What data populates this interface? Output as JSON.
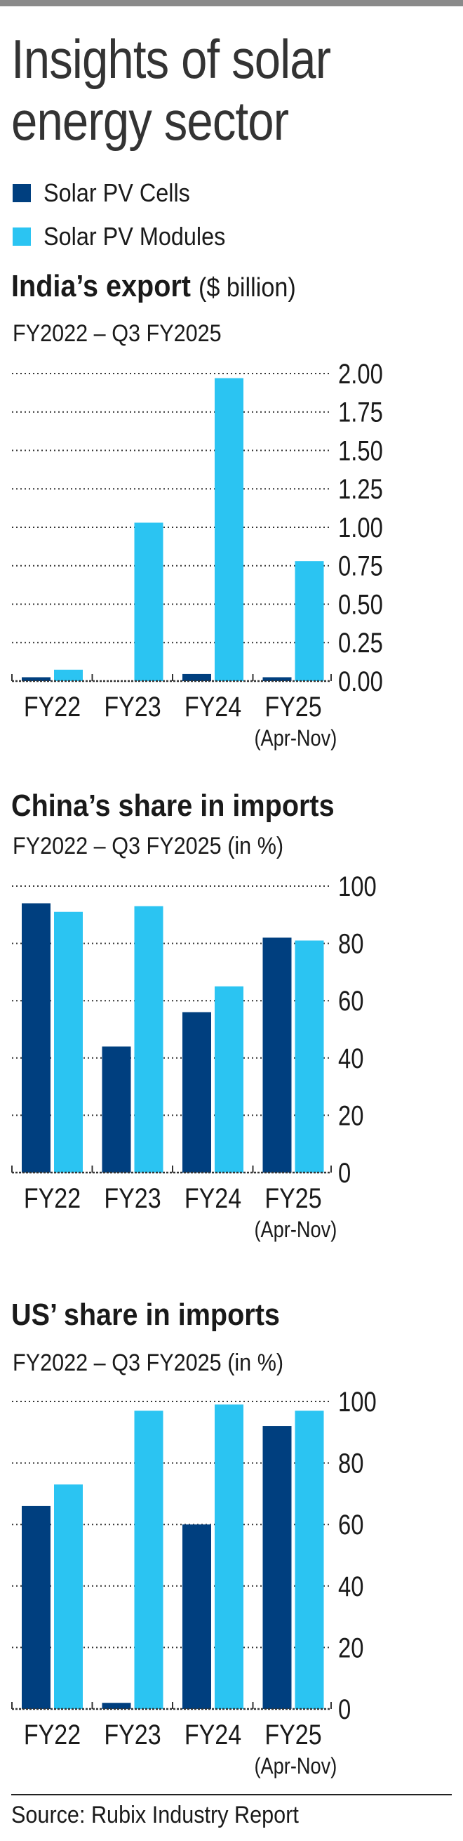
{
  "title_lines": [
    "Insights of solar",
    "energy sector"
  ],
  "colors": {
    "cells": "#003f7f",
    "modules": "#2bc4f2"
  },
  "legend": [
    {
      "label": "Solar PV Cells",
      "color": "#003f7f"
    },
    {
      "label": "Solar PV Modules",
      "color": "#2bc4f2"
    }
  ],
  "source": "Source: Rubix Industry Report",
  "chart_data": [
    {
      "type": "bar",
      "title": "India’s export",
      "title_unit": "($ billion)",
      "subtitle": "FY2022 – Q3 FY2025",
      "categories": [
        "FY22",
        "FY23",
        "FY24",
        "FY25"
      ],
      "category_notes": [
        "",
        "",
        "",
        "(Apr-Nov)"
      ],
      "ylim": [
        0,
        2
      ],
      "yticks": [
        "0.00",
        "0.25",
        "0.50",
        "0.75",
        "1.00",
        "1.25",
        "1.50",
        "1.75",
        "2.00"
      ],
      "ytick_values": [
        0,
        0.25,
        0.5,
        0.75,
        1,
        1.25,
        1.5,
        1.75,
        2
      ],
      "grid": true,
      "y_axis_side": "right",
      "series": [
        {
          "name": "Solar PV Cells",
          "values": [
            0.025,
            0,
            0.046,
            0.025
          ]
        },
        {
          "name": "Solar PV Modules",
          "values": [
            0.074,
            1.03,
            1.97,
            0.78
          ]
        }
      ]
    },
    {
      "type": "bar",
      "title": "China’s share in imports",
      "title_unit": "",
      "subtitle": "FY2022 – Q3 FY2025 (in %)",
      "categories": [
        "FY22",
        "FY23",
        "FY24",
        "FY25"
      ],
      "category_notes": [
        "",
        "",
        "",
        "(Apr-Nov)"
      ],
      "ylim": [
        0,
        100
      ],
      "yticks": [
        "0",
        "20",
        "40",
        "60",
        "80",
        "100"
      ],
      "ytick_values": [
        0,
        20,
        40,
        60,
        80,
        100
      ],
      "grid": true,
      "y_axis_side": "right",
      "series": [
        {
          "name": "Solar PV Cells",
          "values": [
            94,
            44,
            56,
            82
          ]
        },
        {
          "name": "Solar PV Modules",
          "values": [
            91,
            93,
            65,
            81
          ]
        }
      ]
    },
    {
      "type": "bar",
      "title": "US’ share in imports",
      "title_unit": "",
      "subtitle": "FY2022 – Q3 FY2025 (in %)",
      "categories": [
        "FY22",
        "FY23",
        "FY24",
        "FY25"
      ],
      "category_notes": [
        "",
        "",
        "",
        "(Apr-Nov)"
      ],
      "ylim": [
        0,
        100
      ],
      "yticks": [
        "0",
        "20",
        "40",
        "60",
        "80",
        "100"
      ],
      "ytick_values": [
        0,
        20,
        40,
        60,
        80,
        100
      ],
      "grid": true,
      "y_axis_side": "right",
      "series": [
        {
          "name": "Solar PV Cells",
          "values": [
            66,
            2,
            60,
            92
          ]
        },
        {
          "name": "Solar PV Modules",
          "values": [
            73,
            97,
            99,
            97
          ]
        }
      ]
    }
  ]
}
